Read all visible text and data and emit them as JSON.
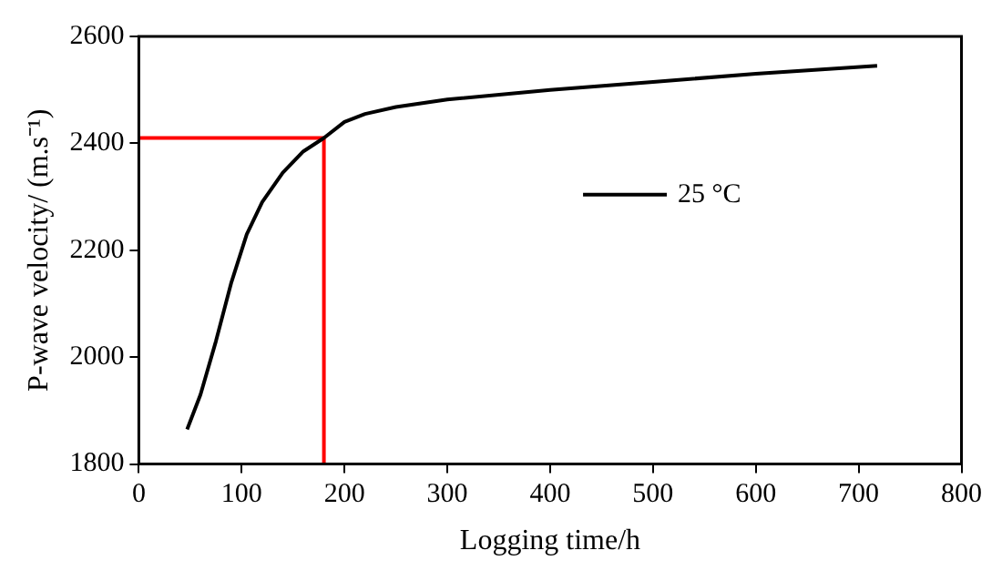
{
  "chart_data": {
    "type": "line",
    "xlabel": "Logging time/h",
    "ylabel": "P-wave velocity/ (m.s⁻¹)",
    "xlim": [
      0,
      800
    ],
    "xticks": [
      0,
      100,
      200,
      300,
      400,
      500,
      600,
      700,
      800
    ],
    "ylim": [
      1800,
      2600
    ],
    "yticks": [
      1800,
      2000,
      2200,
      2400,
      2600
    ],
    "grid": false,
    "legend": "right",
    "marker": "none",
    "line_style": "solid",
    "series": [
      {
        "name": "25 °C",
        "color": "#000000",
        "x": [
          47,
          60,
          75,
          90,
          105,
          120,
          140,
          160,
          180,
          200,
          220,
          250,
          300,
          400,
          500,
          600,
          718
        ],
        "values": [
          1865,
          1930,
          2030,
          2140,
          2230,
          2290,
          2345,
          2385,
          2410,
          2440,
          2455,
          2468,
          2482,
          2500,
          2515,
          2530,
          2545
        ]
      },
      {
        "type": "line",
        "color": "#ff0000",
        "x": [
          0,
          180,
          180
        ],
        "values": [
          2410,
          2410,
          1800
        ]
      }
    ]
  }
}
